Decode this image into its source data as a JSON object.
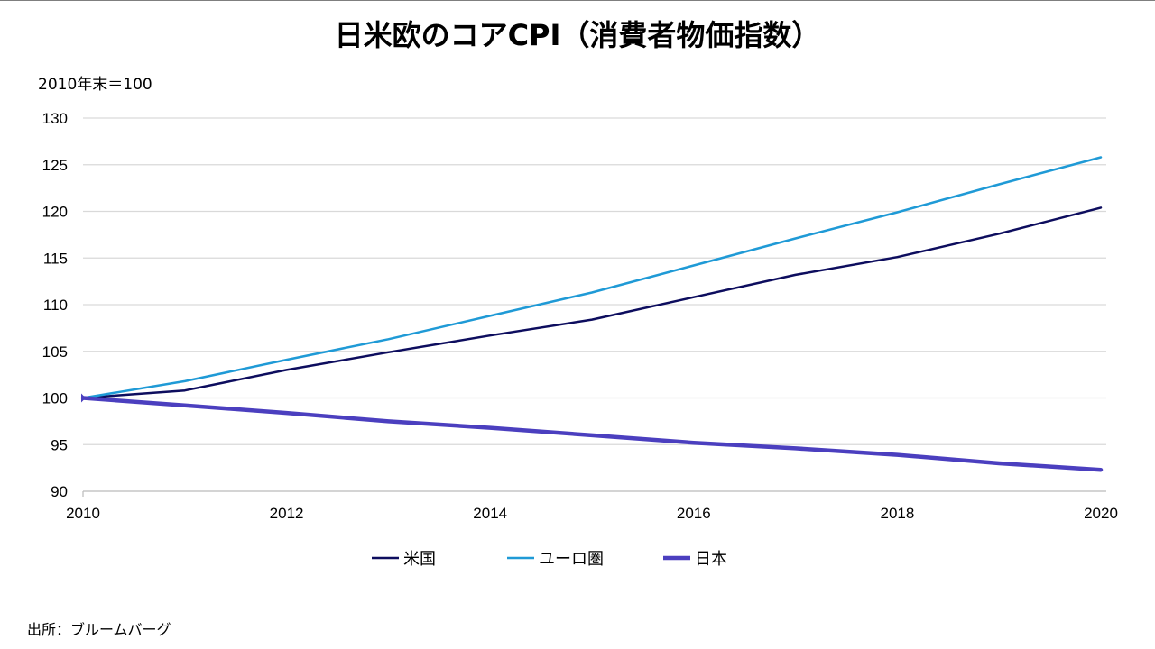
{
  "title": "日米欧のコアCPI（消費者物価指数）",
  "unit_label": "2010年末＝100",
  "source": "出所：ブルームバーグ",
  "chart_data": {
    "type": "line",
    "title": "日米欧のコアCPI（消費者物価指数）",
    "xlabel": "",
    "ylabel": "2010年末＝100",
    "x": [
      2010,
      2011,
      2012,
      2013,
      2014,
      2015,
      2016,
      2017,
      2018,
      2019,
      2020
    ],
    "x_ticks": [
      2010,
      2012,
      2014,
      2016,
      2018,
      2020
    ],
    "xlim": [
      2010,
      2020
    ],
    "ylim": [
      90,
      130
    ],
    "y_ticks": [
      90,
      95,
      100,
      105,
      110,
      115,
      120,
      125,
      130
    ],
    "grid": true,
    "legend_position": "bottom",
    "series": [
      {
        "name": "米国",
        "color": "#0d0d5e",
        "width": 2.5,
        "values": [
          100,
          100.8,
          103.0,
          104.9,
          106.7,
          108.4,
          110.8,
          113.2,
          115.1,
          117.6,
          120.4
        ]
      },
      {
        "name": "ユーロ圏",
        "color": "#1f9ad6",
        "width": 2.5,
        "values": [
          100,
          101.8,
          104.1,
          106.3,
          108.8,
          111.3,
          114.2,
          117.1,
          119.9,
          122.9,
          125.8
        ]
      },
      {
        "name": "日本",
        "color": "#4b3fbf",
        "width": 4.5,
        "values": [
          100,
          99.2,
          98.4,
          97.5,
          96.8,
          96.0,
          95.2,
          94.6,
          93.9,
          93.0,
          92.3
        ]
      }
    ]
  }
}
